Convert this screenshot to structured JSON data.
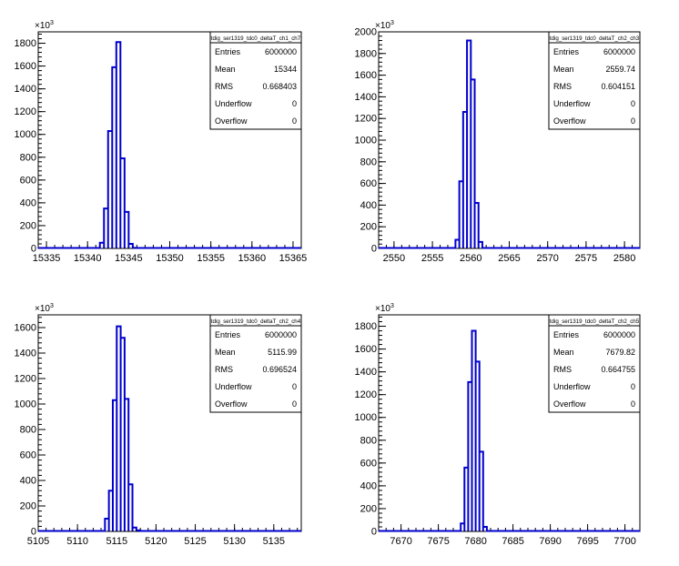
{
  "chart_data": [
    {
      "type": "bar",
      "title": "tdig_ser1319_tdc0_deltaT_ch1_ch7",
      "xlabel": "",
      "ylabel": "",
      "y_multiplier_label": "×10",
      "y_multiplier_exponent": "3",
      "xlim": [
        15334,
        15366
      ],
      "ylim": [
        0,
        1900
      ],
      "xticks": [
        15335,
        15340,
        15345,
        15350,
        15355,
        15360,
        15365
      ],
      "yticks": [
        0,
        200,
        400,
        600,
        800,
        1000,
        1200,
        1400,
        1600,
        1800
      ],
      "bin_width": 0.5,
      "bins": [
        {
          "x": 15341.5,
          "value": 50
        },
        {
          "x": 15342.0,
          "value": 350
        },
        {
          "x": 15342.5,
          "value": 1030
        },
        {
          "x": 15343.0,
          "value": 1590
        },
        {
          "x": 15343.5,
          "value": 1810
        },
        {
          "x": 15344.0,
          "value": 790
        },
        {
          "x": 15344.5,
          "value": 320
        },
        {
          "x": 15345.0,
          "value": 40
        },
        {
          "x": 15345.5,
          "value": 5
        }
      ],
      "stats": [
        {
          "label": "Entries",
          "value": "6000000"
        },
        {
          "label": "Mean",
          "value": "15344"
        },
        {
          "label": "RMS",
          "value": "0.668403"
        },
        {
          "label": "Underflow",
          "value": "0"
        },
        {
          "label": "Overflow",
          "value": "0"
        }
      ],
      "line_color": "#0000cc"
    },
    {
      "type": "bar",
      "title": "tdig_ser1319_tdc0_deltaT_ch2_ch3",
      "xlabel": "",
      "ylabel": "",
      "y_multiplier_label": "×10",
      "y_multiplier_exponent": "3",
      "xlim": [
        2548,
        2582
      ],
      "ylim": [
        0,
        2000
      ],
      "xticks": [
        2550,
        2555,
        2560,
        2565,
        2570,
        2575,
        2580
      ],
      "yticks": [
        0,
        200,
        400,
        600,
        800,
        1000,
        1200,
        1400,
        1600,
        1800,
        2000
      ],
      "bin_width": 0.5,
      "bins": [
        {
          "x": 2558.0,
          "value": 80
        },
        {
          "x": 2558.5,
          "value": 620
        },
        {
          "x": 2559.0,
          "value": 1260
        },
        {
          "x": 2559.5,
          "value": 1920
        },
        {
          "x": 2560.0,
          "value": 1560
        },
        {
          "x": 2560.5,
          "value": 420
        },
        {
          "x": 2561.0,
          "value": 60
        }
      ],
      "stats": [
        {
          "label": "Entries",
          "value": "6000000"
        },
        {
          "label": "Mean",
          "value": "2559.74"
        },
        {
          "label": "RMS",
          "value": "0.604151"
        },
        {
          "label": "Underflow",
          "value": "0"
        },
        {
          "label": "Overflow",
          "value": "0"
        }
      ],
      "line_color": "#0000cc"
    },
    {
      "type": "bar",
      "title": "tdig_ser1319_tdc0_deltaT_ch2_ch4",
      "xlabel": "",
      "ylabel": "",
      "y_multiplier_label": "×10",
      "y_multiplier_exponent": "3",
      "xlim": [
        5105,
        5138.5
      ],
      "ylim": [
        0,
        1700
      ],
      "xticks": [
        5105,
        5110,
        5115,
        5120,
        5125,
        5130,
        5135
      ],
      "yticks": [
        0,
        200,
        400,
        600,
        800,
        1000,
        1200,
        1400,
        1600
      ],
      "bin_width": 0.5,
      "bins": [
        {
          "x": 5113.5,
          "value": 100
        },
        {
          "x": 5114.0,
          "value": 320
        },
        {
          "x": 5114.5,
          "value": 1030
        },
        {
          "x": 5115.0,
          "value": 1610
        },
        {
          "x": 5115.5,
          "value": 1520
        },
        {
          "x": 5116.0,
          "value": 1040
        },
        {
          "x": 5116.5,
          "value": 370
        },
        {
          "x": 5117.0,
          "value": 30
        },
        {
          "x": 5117.5,
          "value": 8
        }
      ],
      "stats": [
        {
          "label": "Entries",
          "value": "6000000"
        },
        {
          "label": "Mean",
          "value": "5115.99"
        },
        {
          "label": "RMS",
          "value": "0.696524"
        },
        {
          "label": "Underflow",
          "value": "0"
        },
        {
          "label": "Overflow",
          "value": "0"
        }
      ],
      "line_color": "#0000cc"
    },
    {
      "type": "bar",
      "title": "tdig_ser1319_tdc0_deltaT_ch2_ch5",
      "xlabel": "",
      "ylabel": "",
      "y_multiplier_label": "×10",
      "y_multiplier_exponent": "3",
      "xlim": [
        7667,
        7702
      ],
      "ylim": [
        0,
        1900
      ],
      "xticks": [
        7670,
        7675,
        7680,
        7685,
        7690,
        7695,
        7700
      ],
      "yticks": [
        0,
        200,
        400,
        600,
        800,
        1000,
        1200,
        1400,
        1600,
        1800
      ],
      "bin_width": 0.5,
      "bins": [
        {
          "x": 7678.0,
          "value": 70
        },
        {
          "x": 7678.5,
          "value": 560
        },
        {
          "x": 7679.0,
          "value": 1310
        },
        {
          "x": 7679.5,
          "value": 1760
        },
        {
          "x": 7680.0,
          "value": 1490
        },
        {
          "x": 7680.5,
          "value": 700
        },
        {
          "x": 7681.0,
          "value": 40
        }
      ],
      "stats": [
        {
          "label": "Entries",
          "value": "6000000"
        },
        {
          "label": "Mean",
          "value": "7679.82"
        },
        {
          "label": "RMS",
          "value": "0.664755"
        },
        {
          "label": "Underflow",
          "value": "0"
        },
        {
          "label": "Overflow",
          "value": "0"
        }
      ],
      "line_color": "#0000cc"
    }
  ]
}
